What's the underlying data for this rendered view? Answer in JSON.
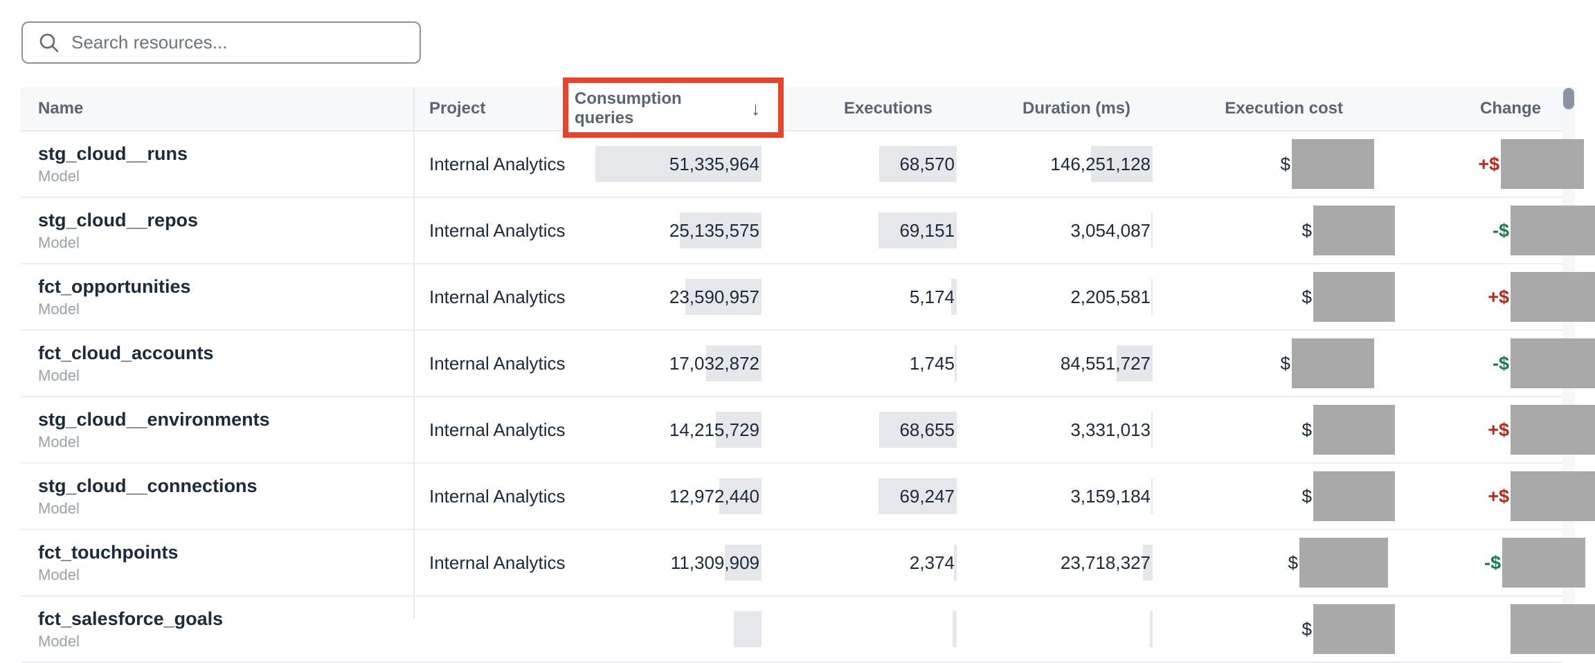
{
  "search": {
    "placeholder": "Search resources..."
  },
  "annotation": {
    "purpose": "highlight-box around sorted column header",
    "color": "#e8432b"
  },
  "scrollbar": {
    "thumb_position": "top"
  },
  "colors": {
    "positive_change": "#b32a1e",
    "negative_change": "#1d7a4c",
    "redaction_mask": "#a9a9a9",
    "data_bar": "#e6e7ea",
    "annotation_red": "#e8432b"
  },
  "table": {
    "currency_symbol": "$",
    "columns": [
      {
        "label": "Name"
      },
      {
        "label": "Project"
      },
      {
        "label": "Consumption queries",
        "sorted": "descending",
        "sort_icon": "↓"
      },
      {
        "label": "Executions"
      },
      {
        "label": "Duration (ms)"
      },
      {
        "label": "Execution cost",
        "masked": true
      },
      {
        "label": "Change",
        "masked": true
      }
    ],
    "rows": [
      {
        "name": "stg_cloud__runs",
        "type": "Model",
        "project": "Internal Analytics",
        "consumption": "51,335,964",
        "executions": "68,570",
        "duration": "146,251,128",
        "cq_bar": 240,
        "ex_bar": 112,
        "du_bar": 89,
        "cost_mask_w": 119,
        "cost_pad": 30,
        "change_sign": "+$",
        "change_dir": "up",
        "change_mask_w": 120,
        "change_overhang": 31
      },
      {
        "name": "stg_cloud__repos",
        "type": "Model",
        "project": "Internal Analytics",
        "consumption": "25,135,575",
        "executions": "69,151",
        "duration": "3,054,087",
        "cq_bar": 118,
        "ex_bar": 113,
        "du_bar": 2,
        "cost_mask_w": 118,
        "cost_pad": 0,
        "change_sign": "-$",
        "change_dir": "down",
        "change_mask_w": 122,
        "change_overhang": 47
      },
      {
        "name": "fct_opportunities",
        "type": "Model",
        "project": "Internal Analytics",
        "consumption": "23,590,957",
        "executions": "5,174",
        "duration": "2,205,581",
        "cq_bar": 110,
        "ex_bar": 8,
        "du_bar": 2,
        "cost_mask_w": 118,
        "cost_pad": 0,
        "change_sign": "+$",
        "change_dir": "up",
        "change_mask_w": 122,
        "change_overhang": 47
      },
      {
        "name": "fct_cloud_accounts",
        "type": "Model",
        "project": "Internal Analytics",
        "consumption": "17,032,872",
        "executions": "1,745",
        "duration": "84,551,727",
        "cq_bar": 80,
        "ex_bar": 3,
        "du_bar": 52,
        "cost_mask_w": 119,
        "cost_pad": 30,
        "change_sign": "-$",
        "change_dir": "down",
        "change_mask_w": 122,
        "change_overhang": 47
      },
      {
        "name": "stg_cloud__environments",
        "type": "Model",
        "project": "Internal Analytics",
        "consumption": "14,215,729",
        "executions": "68,655",
        "duration": "3,331,013",
        "cq_bar": 66,
        "ex_bar": 112,
        "du_bar": 2,
        "cost_mask_w": 118,
        "cost_pad": 0,
        "change_sign": "+$",
        "change_dir": "up",
        "change_mask_w": 122,
        "change_overhang": 47
      },
      {
        "name": "stg_cloud__connections",
        "type": "Model",
        "project": "Internal Analytics",
        "consumption": "12,972,440",
        "executions": "69,247",
        "duration": "3,159,184",
        "cq_bar": 61,
        "ex_bar": 113,
        "du_bar": 2,
        "cost_mask_w": 118,
        "cost_pad": 0,
        "change_sign": "+$",
        "change_dir": "up",
        "change_mask_w": 122,
        "change_overhang": 47
      },
      {
        "name": "fct_touchpoints",
        "type": "Model",
        "project": "Internal Analytics",
        "consumption": "11,309,909",
        "executions": "2,374",
        "duration": "23,718,327",
        "cq_bar": 53,
        "ex_bar": 4,
        "du_bar": 14,
        "cost_mask_w": 128,
        "cost_pad": 10,
        "change_sign": "-$",
        "change_dir": "down",
        "change_mask_w": 120,
        "change_overhang": 33
      },
      {
        "name": "fct_salesforce_goals",
        "type": "Model",
        "project": "",
        "consumption": "",
        "executions": "",
        "duration": "",
        "cq_bar": 40,
        "ex_bar": 6,
        "du_bar": 4,
        "cost_mask_w": 118,
        "cost_pad": 0,
        "change_sign": "",
        "change_dir": "none",
        "change_mask_w": 122,
        "change_overhang": 47
      }
    ]
  }
}
